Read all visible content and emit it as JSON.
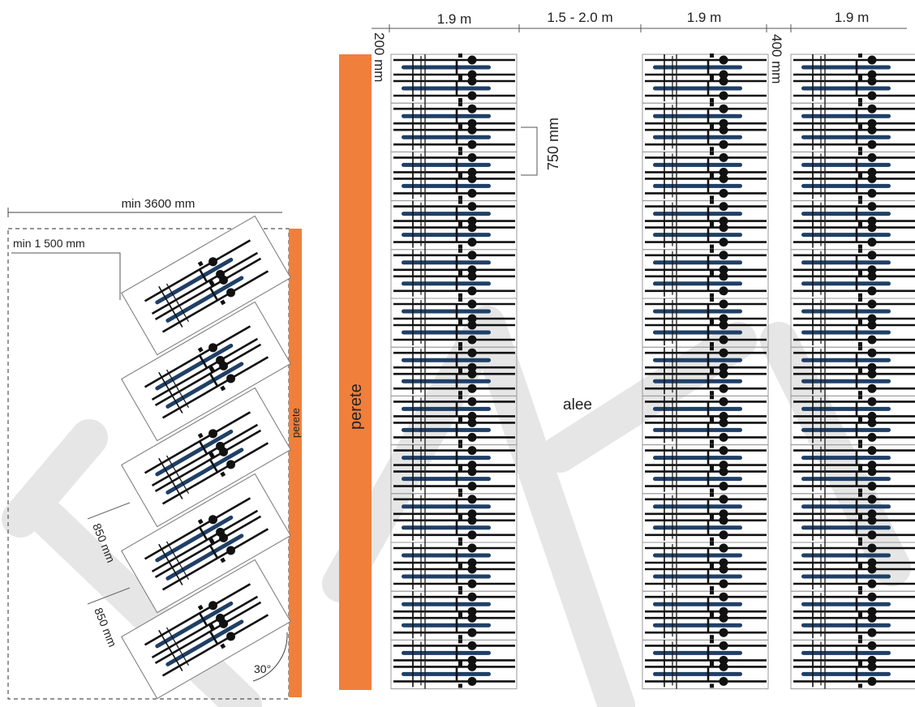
{
  "colors": {
    "wall": "#F07F3C",
    "bike_frame": "#1F3F66",
    "bike_line": "#111111",
    "slot_border": "#9a9a9a",
    "watermark": "#e3e3e3"
  },
  "left_diagram": {
    "width_label": "min 3600 mm",
    "depth_label": "min 1 500 mm",
    "spacing_label_1": "850 mm",
    "spacing_label_2": "850 mm",
    "angle_label": "30°",
    "wall_label": "perete",
    "bike_count": 5
  },
  "right_diagram": {
    "col1_width_label": "1.9 m",
    "aisle_width_label": "1.5 - 2.0 m",
    "col2_width_label": "1.9 m",
    "col3_width_label": "1.9 m",
    "wall_gap_label": "200 mm",
    "col_gap_label": "400 mm",
    "slot_pitch_label": "750 mm",
    "wall_label": "perete",
    "aisle_label": "alee",
    "rows_per_column": 13
  }
}
